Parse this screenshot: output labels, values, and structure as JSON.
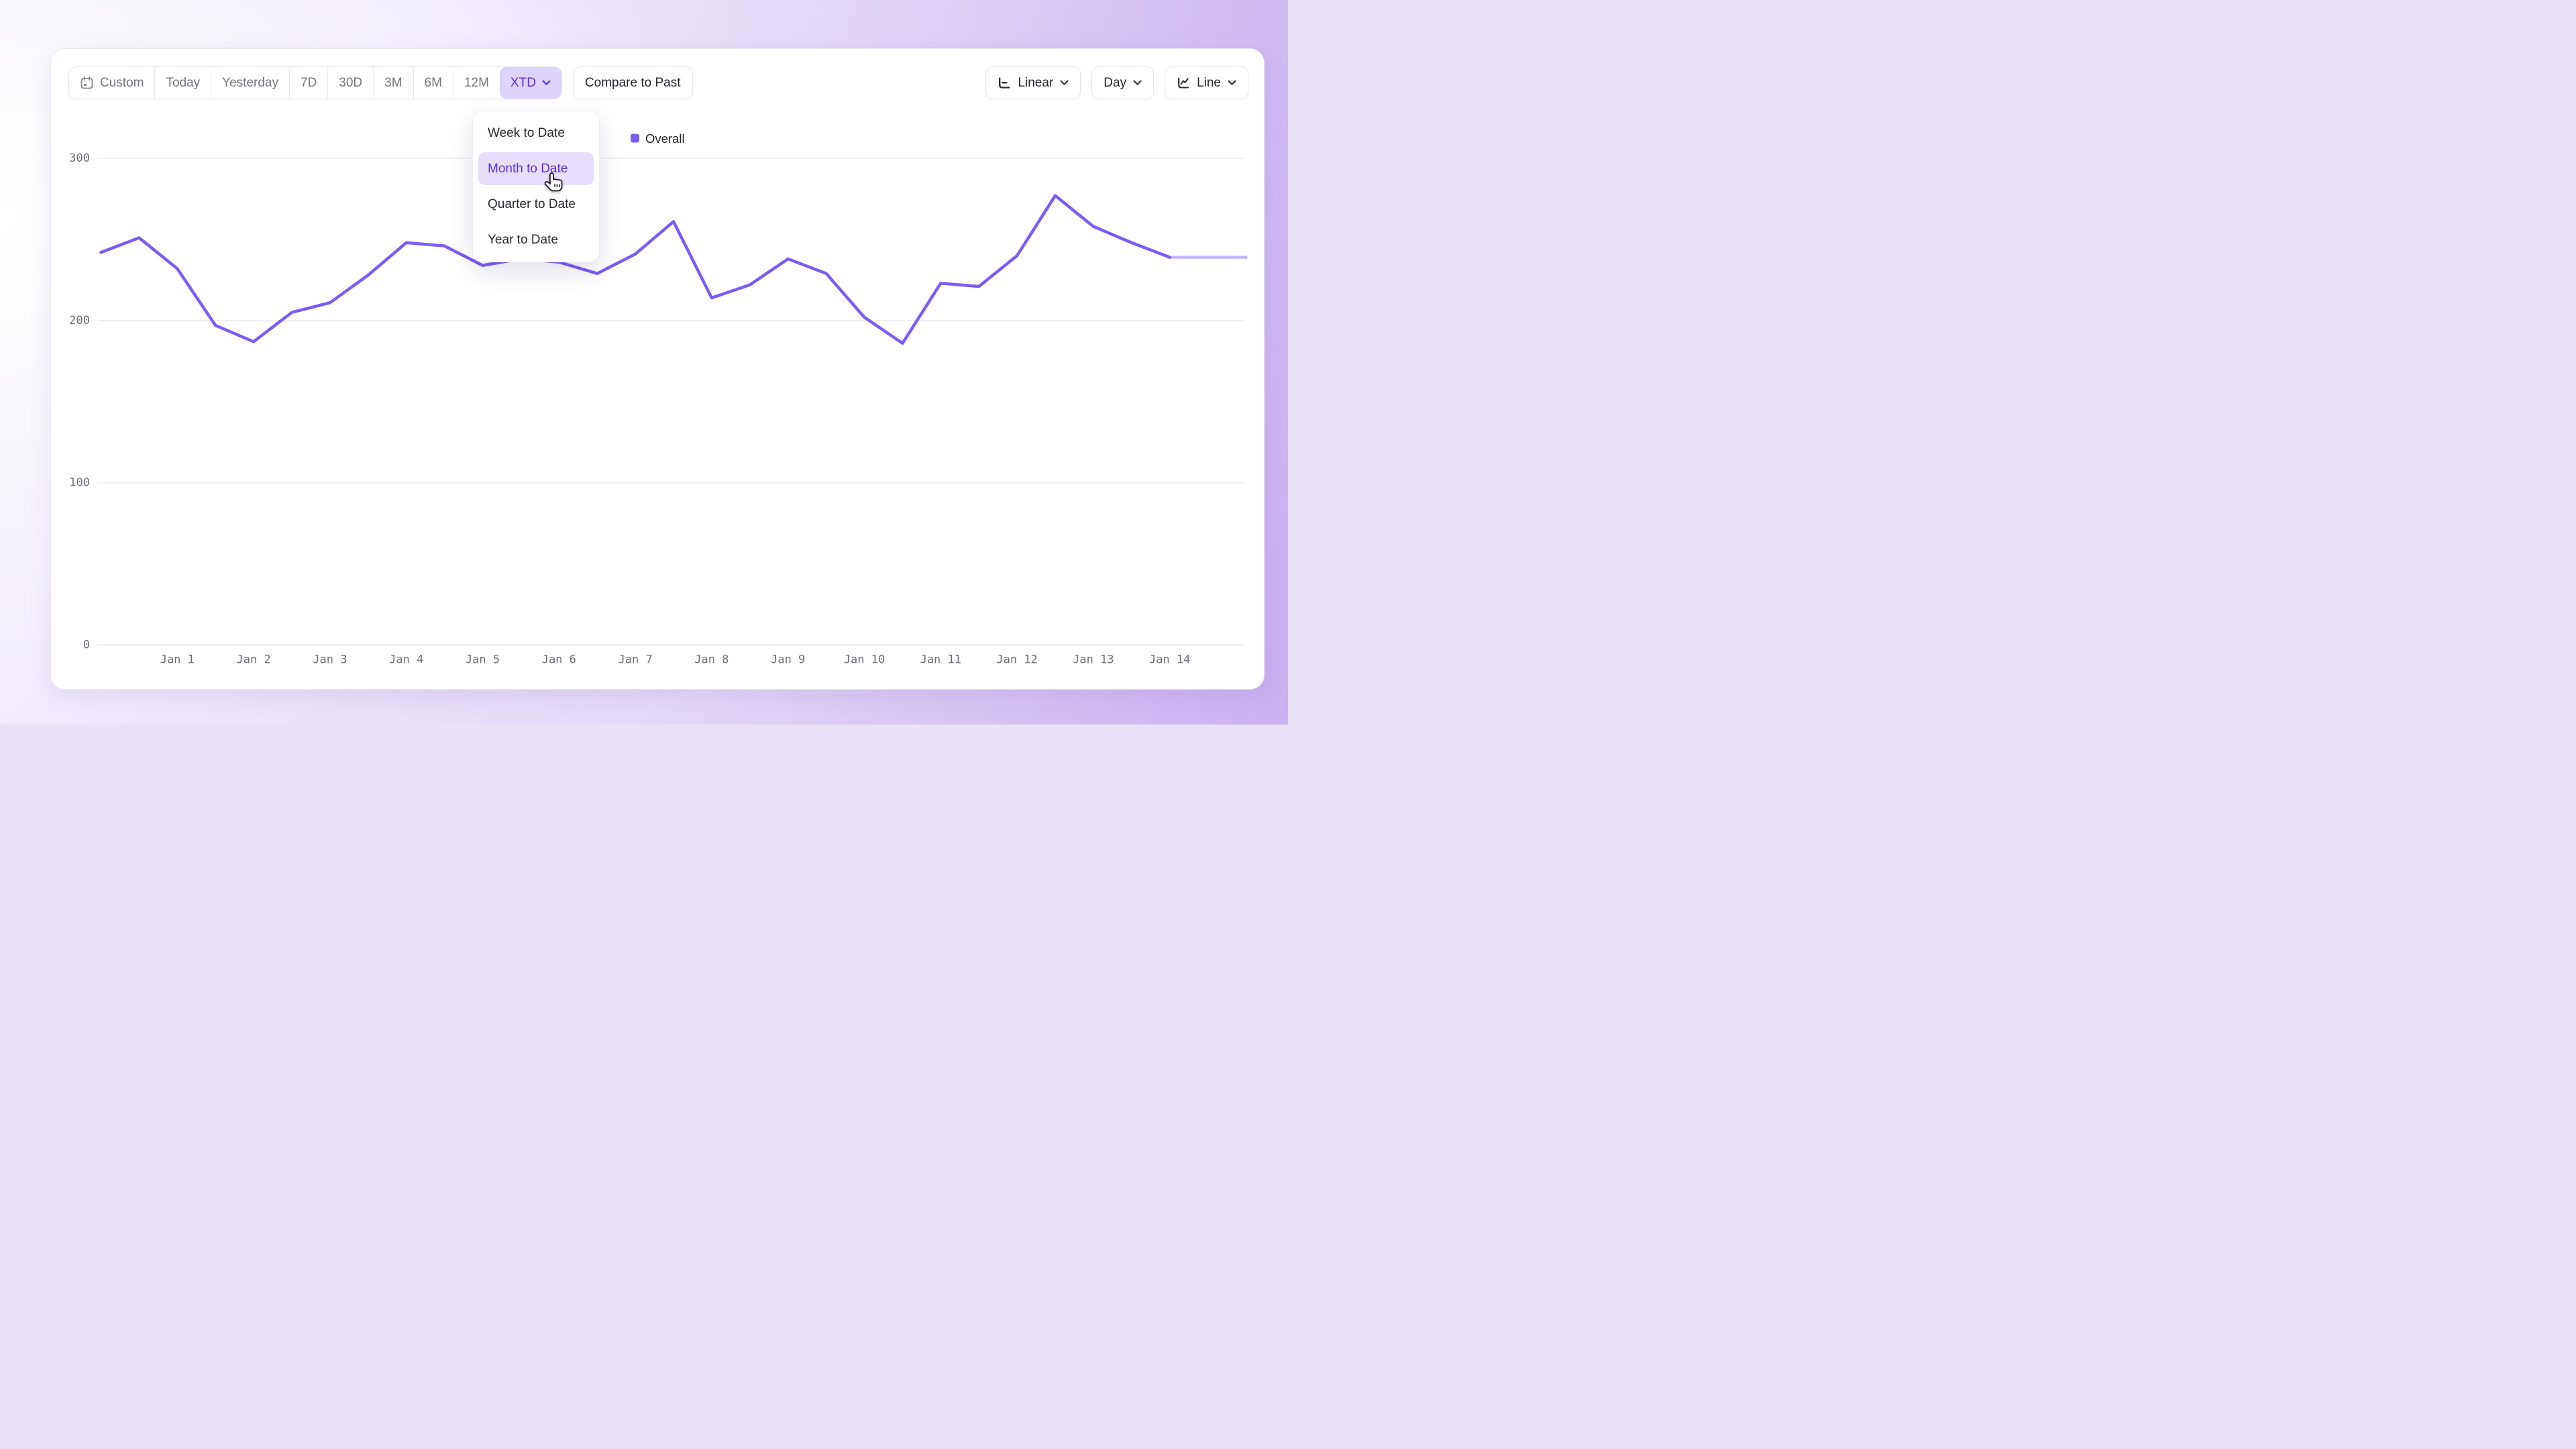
{
  "toolbar": {
    "ranges": [
      {
        "label": "Custom",
        "icon": "calendar-icon",
        "selected": false
      },
      {
        "label": "Today",
        "selected": false
      },
      {
        "label": "Yesterday",
        "selected": false
      },
      {
        "label": "7D",
        "selected": false
      },
      {
        "label": "30D",
        "selected": false
      },
      {
        "label": "3M",
        "selected": false
      },
      {
        "label": "6M",
        "selected": false
      },
      {
        "label": "12M",
        "selected": false
      },
      {
        "label": "XTD",
        "selected": true,
        "has_chevron": true
      }
    ],
    "compare_label": "Compare to Past",
    "scale": {
      "label": "Linear",
      "icon": "axis-linear-icon",
      "has_chevron": true
    },
    "granularity": {
      "label": "Day",
      "has_chevron": true
    },
    "chart_type": {
      "label": "Line",
      "icon": "line-chart-icon",
      "has_chevron": true
    }
  },
  "dropdown": {
    "items": [
      {
        "label": "Week to Date",
        "highlighted": false
      },
      {
        "label": "Month to Date",
        "highlighted": true
      },
      {
        "label": "Quarter to Date",
        "highlighted": false
      },
      {
        "label": "Year to Date",
        "highlighted": false
      }
    ]
  },
  "chart_data": {
    "type": "line",
    "title": "",
    "xlabel": "",
    "ylabel": "",
    "y_ticks": [
      0,
      100,
      200,
      300
    ],
    "ylim": [
      0,
      300
    ],
    "grid": "horizontal",
    "legend_position": "top",
    "x_tick_labels": [
      "Jan 1",
      "Jan 2",
      "Jan 3",
      "Jan 4",
      "Jan 5",
      "Jan 6",
      "Jan 7",
      "Jan 8",
      "Jan 9",
      "Jan 10",
      "Jan 11",
      "Jan 12",
      "Jan 13",
      "Jan 14"
    ],
    "first_tick_index": 2,
    "tick_every": 2,
    "faded_tail_from_index": 28,
    "series": [
      {
        "name": "Overall",
        "color": "#7b5cf5",
        "values": [
          242,
          251,
          232,
          197,
          187,
          205,
          211,
          228,
          248,
          246,
          234,
          238,
          236,
          229,
          241,
          261,
          214,
          222,
          238,
          229,
          202,
          186,
          223,
          221,
          240,
          277,
          258,
          248,
          239,
          239,
          239
        ]
      }
    ]
  },
  "colors": {
    "accent": "#5b2ee5",
    "accent_soft_bg": "#ded3fb",
    "menu_highlight_bg": "#e7defc",
    "line": "#7b5cf5",
    "grid_line": "#ededf1",
    "axis_line": "#e2e2e8",
    "tick_text": "#6e6e78",
    "button_text_dark": "#232329",
    "button_text_gray": "#73737d"
  }
}
